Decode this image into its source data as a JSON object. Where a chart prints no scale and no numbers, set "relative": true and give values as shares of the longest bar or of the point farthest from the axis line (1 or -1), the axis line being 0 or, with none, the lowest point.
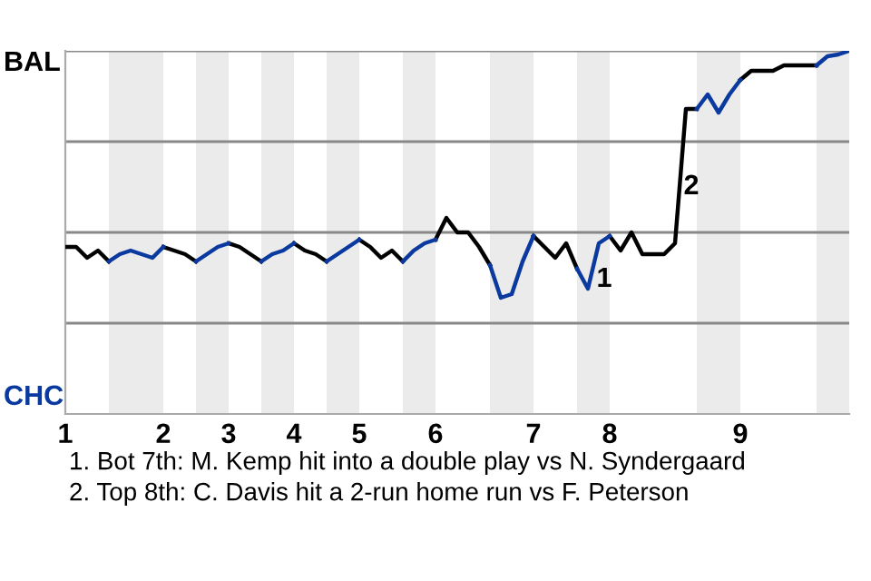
{
  "chart_data": {
    "type": "line",
    "relative": true,
    "categories": [
      "1",
      null,
      null,
      null,
      null,
      null,
      null,
      null,
      null,
      "2",
      null,
      null,
      null,
      null,
      null,
      "3",
      null,
      null,
      null,
      null,
      null,
      "4",
      null,
      null,
      null,
      null,
      null,
      "5",
      null,
      null,
      null,
      null,
      null,
      null,
      "6",
      null,
      null,
      null,
      null,
      null,
      null,
      null,
      null,
      "7",
      null,
      null,
      null,
      null,
      null,
      null,
      "8",
      null,
      null,
      null,
      null,
      null,
      null,
      null,
      null,
      null,
      null,
      null,
      "9",
      null,
      null,
      null,
      null,
      null,
      null,
      null,
      null,
      null,
      null
    ],
    "line_style": "solid",
    "marker": "none",
    "series": [
      {
        "color": "#000000",
        "values": [
          0.46,
          0.46,
          0.43,
          0.45,
          0.42,
          null,
          null,
          null,
          null,
          0.46,
          0.45,
          0.44,
          0.42,
          null,
          null,
          0.47,
          0.46,
          0.44,
          0.42,
          null,
          null,
          0.47,
          0.45,
          0.44,
          0.42,
          null,
          null,
          0.48,
          0.46,
          0.43,
          0.45,
          0.42,
          null,
          null,
          0.48,
          0.54,
          0.5,
          0.5,
          0.46,
          0.41,
          null,
          null,
          null,
          0.49,
          0.46,
          0.43,
          0.47,
          0.4,
          null,
          null,
          0.49,
          0.45,
          0.5,
          0.44,
          0.44,
          0.44,
          0.47,
          0.84,
          0.84,
          null,
          null,
          null,
          0.92,
          0.945,
          0.945,
          0.945,
          0.96,
          0.96,
          0.96,
          0.96,
          null,
          null,
          null
        ]
      },
      {
        "color": "#0a3aa0",
        "values": [
          null,
          null,
          null,
          null,
          0.42,
          0.44,
          0.45,
          0.44,
          0.43,
          0.46,
          null,
          null,
          0.42,
          0.44,
          0.46,
          0.47,
          null,
          null,
          0.42,
          0.44,
          0.45,
          0.47,
          null,
          null,
          0.42,
          0.44,
          0.46,
          0.48,
          null,
          null,
          null,
          0.42,
          0.45,
          0.47,
          0.48,
          null,
          null,
          null,
          null,
          0.41,
          0.32,
          0.33,
          0.42,
          0.49,
          null,
          null,
          null,
          0.4,
          0.345,
          0.47,
          0.49,
          null,
          null,
          null,
          null,
          null,
          null,
          null,
          0.84,
          0.88,
          0.83,
          0.88,
          0.92,
          null,
          null,
          null,
          null,
          null,
          null,
          0.96,
          0.985,
          0.99,
          1
        ]
      }
    ],
    "ref_lines": [
      {
        "axis": "y",
        "value": 0.25,
        "color": "#888888"
      },
      {
        "axis": "y",
        "value": 0.5,
        "color": "#888888"
      },
      {
        "axis": "y",
        "value": 0.75,
        "color": "#888888"
      },
      {
        "axis": "y",
        "value": 1,
        "color": "#888888"
      }
    ],
    "annotations": [
      "BAL",
      "CHC",
      "1",
      "2",
      "1. Bot 7th: M. Kemp hit into a double play vs N. Syndergaard",
      "2. Top 8th: C. Davis hit a 2-run home run vs F. Peterson"
    ]
  }
}
